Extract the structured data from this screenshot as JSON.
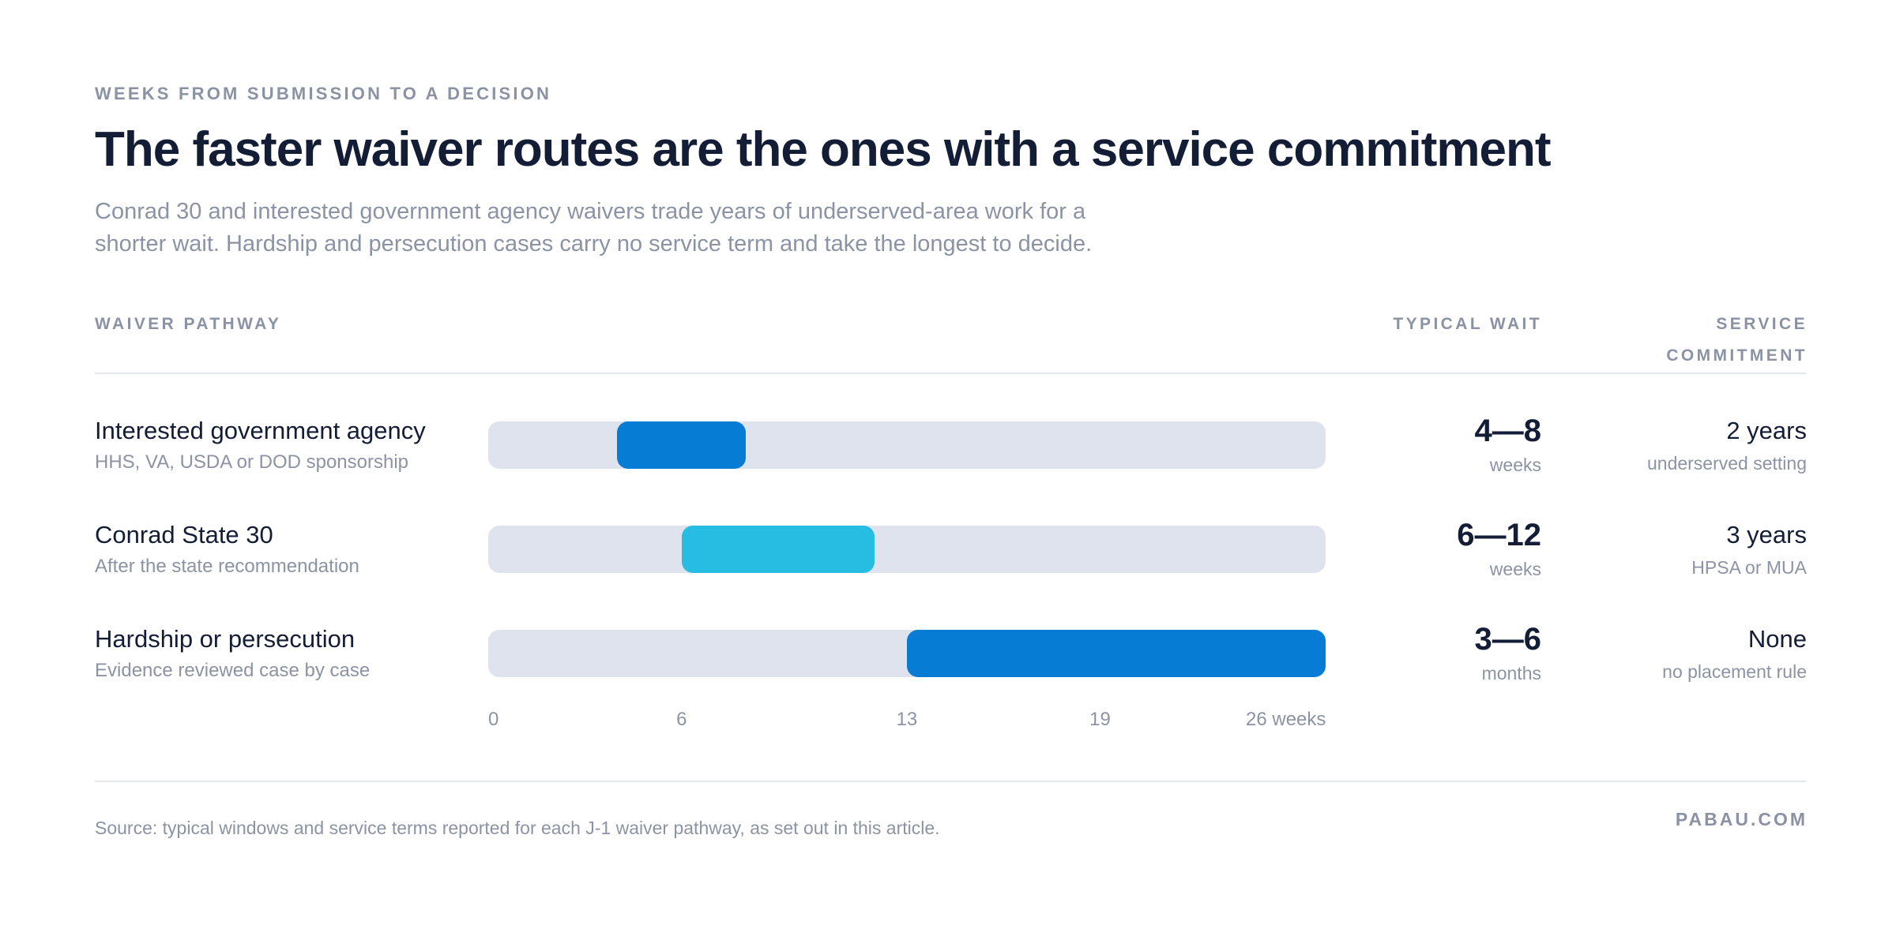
{
  "header": {
    "eyebrow": "WEEKS FROM SUBMISSION TO A DECISION",
    "title": "The faster waiver routes are the ones with a service commitment",
    "subtitle": "Conrad 30 and interested government agency waivers trade years of underserved-area work for a shorter wait. Hardship and persecution cases carry no service term and take the longest to decide."
  },
  "columns": {
    "pathway": "WAIVER PATHWAY",
    "wait": "TYPICAL WAIT",
    "commitment_line1": "SERVICE",
    "commitment_line2": "COMMITMENT"
  },
  "chart_data": {
    "type": "bar",
    "orientation": "horizontal",
    "style": "range",
    "axis_unit": "weeks",
    "xlim": [
      0,
      26
    ],
    "ticks": [
      "0",
      "6",
      "13",
      "19",
      "26 weeks"
    ],
    "tick_values": [
      0,
      6,
      13,
      19,
      26
    ],
    "rows": [
      {
        "label": "Interested government agency",
        "sublabel": "HHS, VA, USDA or DOD sponsorship",
        "start": 4,
        "end": 8,
        "wait_value": "4—8",
        "wait_unit": "weeks",
        "commitment": "2 years",
        "commitment_sub": "underserved setting",
        "color": "#077cd4"
      },
      {
        "label": "Conrad State 30",
        "sublabel": "After the state recommendation",
        "start": 6,
        "end": 12,
        "wait_value": "6—12",
        "wait_unit": "weeks",
        "commitment": "3 years",
        "commitment_sub": "HPSA or MUA",
        "color": "#27bde3"
      },
      {
        "label": "Hardship or persecution",
        "sublabel": "Evidence reviewed case by case",
        "start": 13,
        "end": 26,
        "wait_value": "3—6",
        "wait_unit": "months",
        "commitment": "None",
        "commitment_sub": "no placement rule",
        "color": "#077cd4"
      }
    ],
    "track_color": "#dfe3ed"
  },
  "footer": {
    "source": "Source: typical windows and service terms reported for each J-1 waiver pathway, as set out in this article.",
    "brand": "PABAU.COM"
  }
}
